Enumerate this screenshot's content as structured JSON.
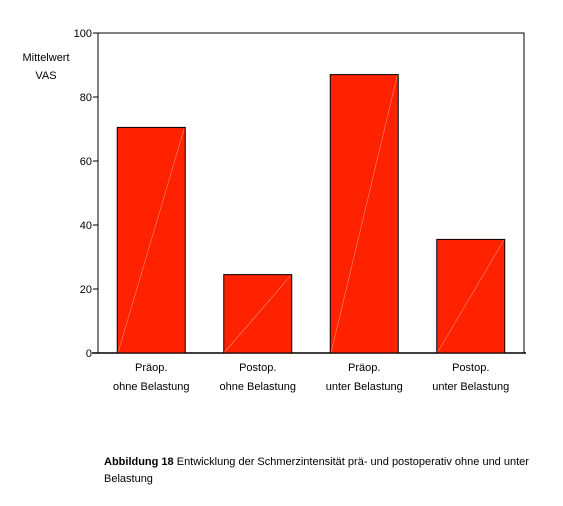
{
  "chart_data": {
    "type": "bar",
    "categories": [
      [
        "Präop.",
        "ohne Belastung"
      ],
      [
        "Postop.",
        "ohne Belastung"
      ],
      [
        "Präop.",
        "unter Belastung"
      ],
      [
        "Postop.",
        "unter Belastung"
      ]
    ],
    "values": [
      70.5,
      24.5,
      87,
      35.5
    ],
    "ylabel_line1": "Mittelwert",
    "ylabel_line2": "VAS",
    "ylim": [
      0,
      100
    ],
    "yticks": [
      0,
      20,
      40,
      60,
      80,
      100
    ],
    "grid": false,
    "bar_color": "#ff2200"
  },
  "caption": {
    "label": "Abbildung 18",
    "text": " Entwicklung der Schmerzintensität prä- und postoperativ ohne und unter Belastung"
  }
}
